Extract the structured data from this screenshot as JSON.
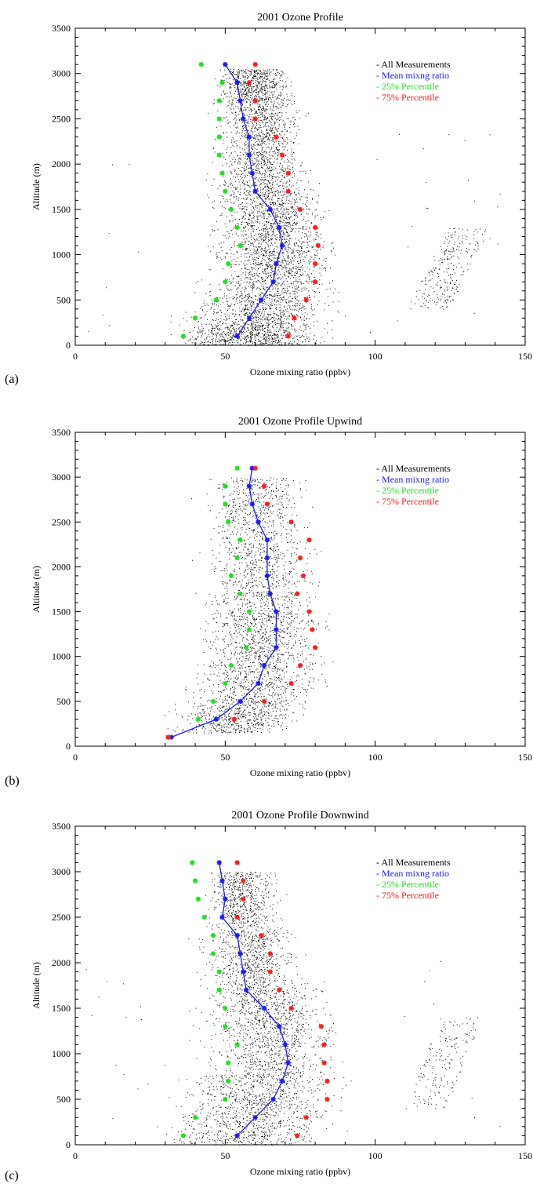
{
  "figure": {
    "panels": [
      {
        "label": "(a)"
      },
      {
        "label": "(b)"
      },
      {
        "label": "(c)"
      }
    ]
  },
  "chart_data": [
    {
      "type": "scatter",
      "title": "2001 Ozone Profile",
      "xlabel": "Ozone mixing ratio (ppbv)",
      "ylabel": "Altitude (m)",
      "xlim": [
        0,
        150
      ],
      "ylim": [
        0,
        3500
      ],
      "xticks": [
        0,
        50,
        100,
        150
      ],
      "yticks": [
        0,
        500,
        1000,
        1500,
        2000,
        2500,
        3000,
        3500
      ],
      "grid": false,
      "legend_position": "top-right",
      "legend": [
        {
          "text": "- All Measurements",
          "color": "#000000"
        },
        {
          "text": "- Mean mixng ratio",
          "color": "#1a1aff"
        },
        {
          "text": "- 25% Percentile",
          "color": "#22dd22"
        },
        {
          "text": "- 75% Percentile",
          "color": "#ff1a1a"
        }
      ],
      "altitudes": [
        100,
        300,
        500,
        700,
        900,
        1100,
        1300,
        1500,
        1700,
        1900,
        2100,
        2300,
        2500,
        2700,
        2900,
        3100
      ],
      "series": [
        {
          "name": "Mean mixng ratio",
          "color": "#1a1aff",
          "style": "line-star",
          "values": [
            54,
            58,
            62,
            66,
            67,
            69,
            68,
            65,
            60,
            59,
            58,
            58,
            56,
            55,
            54,
            50
          ]
        },
        {
          "name": "25% Percentile",
          "color": "#22dd22",
          "style": "star",
          "values": [
            36,
            40,
            47,
            50,
            51,
            55,
            54,
            52,
            50,
            49,
            48,
            48,
            48,
            48,
            49,
            42
          ]
        },
        {
          "name": "75% Percentile",
          "color": "#ff1a1a",
          "style": "star",
          "values": [
            71,
            73,
            77,
            80,
            80,
            81,
            80,
            75,
            71,
            71,
            69,
            67,
            60,
            60,
            58,
            60
          ]
        }
      ],
      "scatter_density": {
        "altitude_bands": [
          [
            0,
            200,
            25,
            95
          ],
          [
            200,
            500,
            28,
            97
          ],
          [
            500,
            900,
            33,
            96
          ],
          [
            900,
            1300,
            36,
            95
          ],
          [
            1300,
            1700,
            38,
            92
          ],
          [
            1700,
            2200,
            40,
            86
          ],
          [
            2200,
            2700,
            42,
            84
          ],
          [
            2700,
            3050,
            42,
            82
          ]
        ],
        "outlier_cluster": {
          "x_range": [
            110,
            135
          ],
          "y_range": [
            400,
            1300
          ]
        },
        "point_count": 5200
      }
    },
    {
      "type": "scatter",
      "title": "2001 Ozone Profile Upwind",
      "xlabel": "Ozone mixing ratio (ppbv)",
      "ylabel": "Altitude (m)",
      "xlim": [
        0,
        150
      ],
      "ylim": [
        0,
        3500
      ],
      "xticks": [
        0,
        50,
        100,
        150
      ],
      "yticks": [
        0,
        500,
        1000,
        1500,
        2000,
        2500,
        3000,
        3500
      ],
      "grid": false,
      "legend_position": "top-right",
      "legend": [
        {
          "text": "- All Measurements",
          "color": "#000000"
        },
        {
          "text": "- Mean mixng ratio",
          "color": "#1a1aff"
        },
        {
          "text": "- 25% Percentile",
          "color": "#22dd22"
        },
        {
          "text": "- 75% Percentile",
          "color": "#ff1a1a"
        }
      ],
      "altitudes": [
        100,
        300,
        500,
        700,
        900,
        1100,
        1300,
        1500,
        1700,
        1900,
        2100,
        2300,
        2500,
        2700,
        2900,
        3100
      ],
      "series": [
        {
          "name": "Mean mixng ratio",
          "color": "#1a1aff",
          "style": "line-star",
          "values": [
            32,
            47,
            55,
            61,
            63,
            67,
            67,
            67,
            65,
            64,
            64,
            64,
            61,
            59,
            58,
            59
          ]
        },
        {
          "name": "25% Percentile",
          "color": "#22dd22",
          "style": "star",
          "values": [
            31,
            41,
            46,
            50,
            52,
            57,
            58,
            58,
            55,
            52,
            54,
            55,
            51,
            50,
            50,
            54
          ]
        },
        {
          "name": "75% Percentile",
          "color": "#ff1a1a",
          "style": "star",
          "values": [
            31,
            53,
            63,
            72,
            75,
            80,
            79,
            78,
            74,
            76,
            75,
            78,
            72,
            64,
            63,
            60
          ]
        }
      ],
      "scatter_density": {
        "altitude_bands": [
          [
            150,
            500,
            25,
            90
          ],
          [
            500,
            1000,
            28,
            95
          ],
          [
            1000,
            1500,
            30,
            90
          ],
          [
            1500,
            2200,
            32,
            88
          ],
          [
            2200,
            3000,
            35,
            86
          ]
        ],
        "outlier_cluster": null,
        "point_count": 2900
      }
    },
    {
      "type": "scatter",
      "title": "2001 Ozone Profile Downwind",
      "xlabel": "Ozone mixing ratio (ppbv)",
      "ylabel": "Altitude (m)",
      "xlim": [
        0,
        150
      ],
      "ylim": [
        0,
        3500
      ],
      "xticks": [
        0,
        50,
        100,
        150
      ],
      "yticks": [
        0,
        500,
        1000,
        1500,
        2000,
        2500,
        3000,
        3500
      ],
      "grid": false,
      "legend_position": "top-right",
      "legend": [
        {
          "text": "- All Measurements",
          "color": "#000000"
        },
        {
          "text": "- Mean mixng ratio",
          "color": "#1a1aff"
        },
        {
          "text": "- 25% Percentile",
          "color": "#22dd22"
        },
        {
          "text": "- 75% Percentile",
          "color": "#ff1a1a"
        }
      ],
      "altitudes": [
        100,
        300,
        500,
        700,
        900,
        1100,
        1300,
        1500,
        1700,
        1900,
        2100,
        2300,
        2500,
        2700,
        2900,
        3100
      ],
      "series": [
        {
          "name": "Mean mixng ratio",
          "color": "#1a1aff",
          "style": "line-star",
          "values": [
            54,
            60,
            66,
            69,
            71,
            70,
            68,
            63,
            57,
            56,
            55,
            54,
            49,
            50,
            49,
            48
          ]
        },
        {
          "name": "25% Percentile",
          "color": "#22dd22",
          "style": "star",
          "values": [
            36,
            40,
            50,
            51,
            51,
            54,
            50,
            50,
            48,
            48,
            46,
            46,
            43,
            41,
            40,
            39
          ]
        },
        {
          "name": "75% Percentile",
          "color": "#ff1a1a",
          "style": "star",
          "values": [
            74,
            77,
            84,
            84,
            83,
            83,
            82,
            72,
            68,
            65,
            65,
            62,
            54,
            56,
            56,
            54
          ]
        }
      ],
      "scatter_density": {
        "altitude_bands": [
          [
            0,
            400,
            18,
            100
          ],
          [
            400,
            800,
            24,
            96
          ],
          [
            800,
            1300,
            30,
            96
          ],
          [
            1300,
            1800,
            34,
            92
          ],
          [
            1800,
            2400,
            36,
            84
          ],
          [
            2400,
            3000,
            40,
            76
          ]
        ],
        "outlier_cluster": {
          "x_range": [
            110,
            132
          ],
          "y_range": [
            400,
            1400
          ]
        },
        "point_count": 3600
      }
    }
  ]
}
